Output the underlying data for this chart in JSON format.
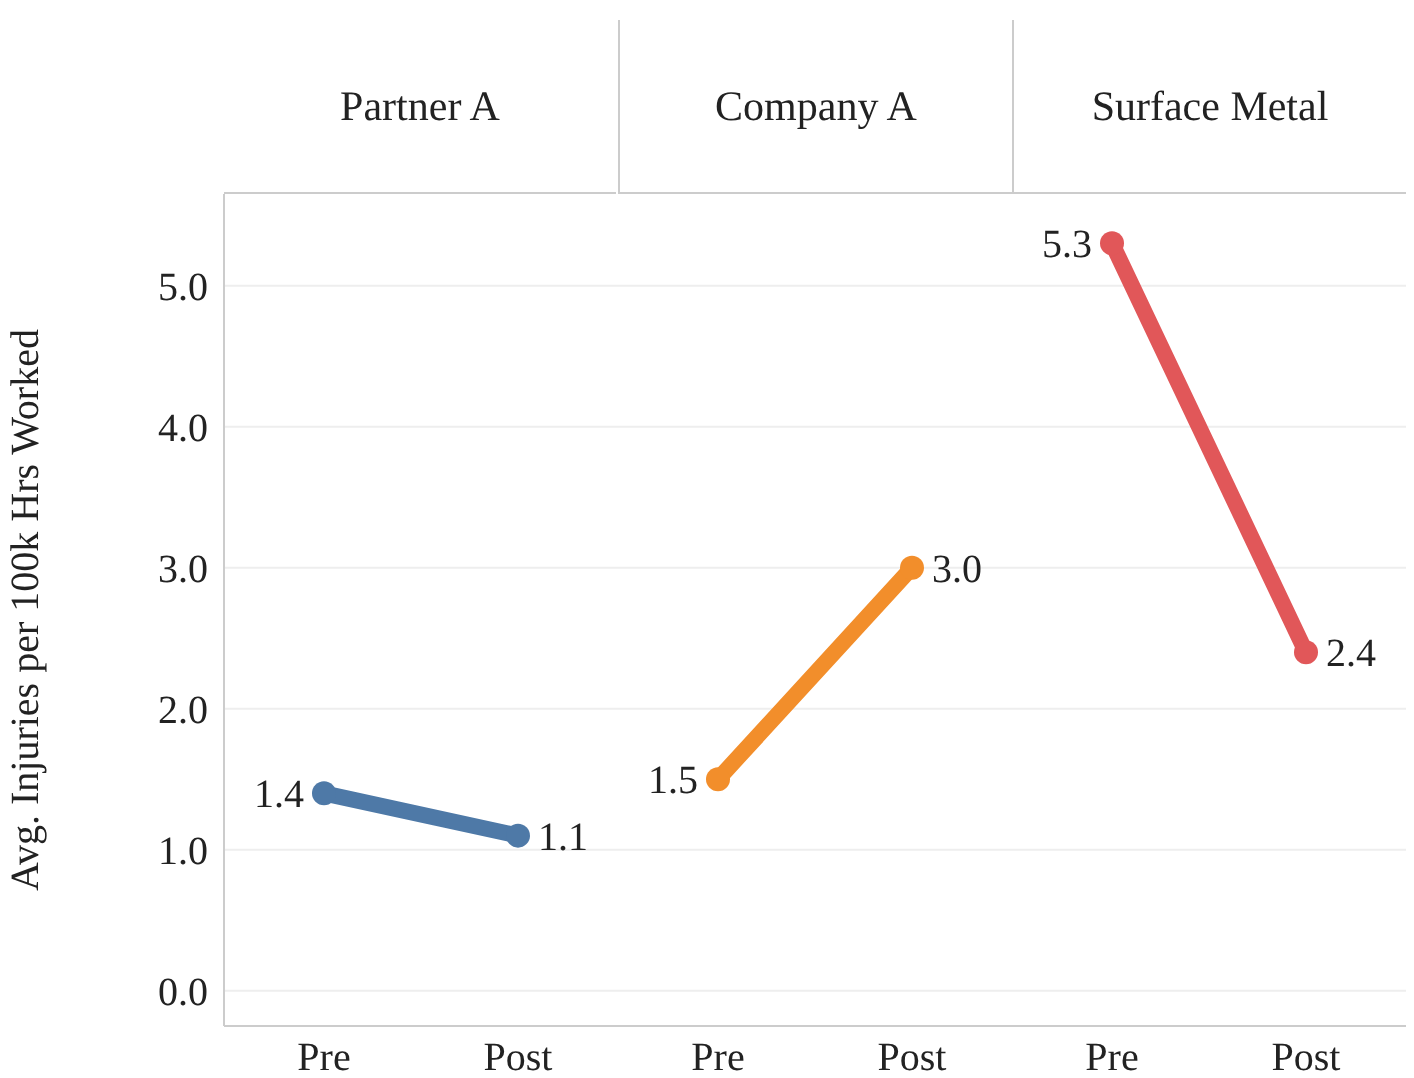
{
  "chart_data": [
    {
      "type": "line",
      "title": "Partner A",
      "ylabel": "Avg. Injuries per 100k Hrs Worked",
      "categories": [
        "Pre",
        "Post"
      ],
      "series": [
        {
          "color": "#4e79a7",
          "values": [
            1.4,
            1.1
          ],
          "value_labels": [
            "1.4",
            "1.1"
          ]
        }
      ],
      "ylim": [
        -0.25,
        5.65
      ],
      "yticks": [
        {
          "value": 0,
          "label": "0.0"
        },
        {
          "value": 1,
          "label": "1.0"
        },
        {
          "value": 2,
          "label": "2.0"
        },
        {
          "value": 3,
          "label": "3.0"
        },
        {
          "value": 4,
          "label": "4.0"
        },
        {
          "value": 5,
          "label": "5.0"
        }
      ],
      "grid": "y",
      "marker": "circle"
    },
    {
      "type": "line",
      "title": "Company A",
      "categories": [
        "Pre",
        "Post"
      ],
      "series": [
        {
          "color": "#f28e2b",
          "values": [
            1.5,
            3.0
          ],
          "value_labels": [
            "1.5",
            "3.0"
          ]
        }
      ],
      "ylim": [
        -0.25,
        5.65
      ],
      "yticks": [
        0,
        1,
        2,
        3,
        4,
        5
      ],
      "grid": "y",
      "marker": "circle",
      "tick_labels": "x"
    },
    {
      "type": "line",
      "title": "Surface Metal",
      "categories": [
        "Pre",
        "Post"
      ],
      "series": [
        {
          "color": "#e15759",
          "values": [
            5.3,
            2.4
          ],
          "value_labels": [
            "5.3",
            "2.4"
          ]
        }
      ],
      "ylim": [
        -0.25,
        5.65
      ],
      "yticks": [
        0,
        1,
        2,
        3,
        4,
        5
      ],
      "grid": "y",
      "marker": "circle",
      "tick_labels": "x"
    }
  ]
}
